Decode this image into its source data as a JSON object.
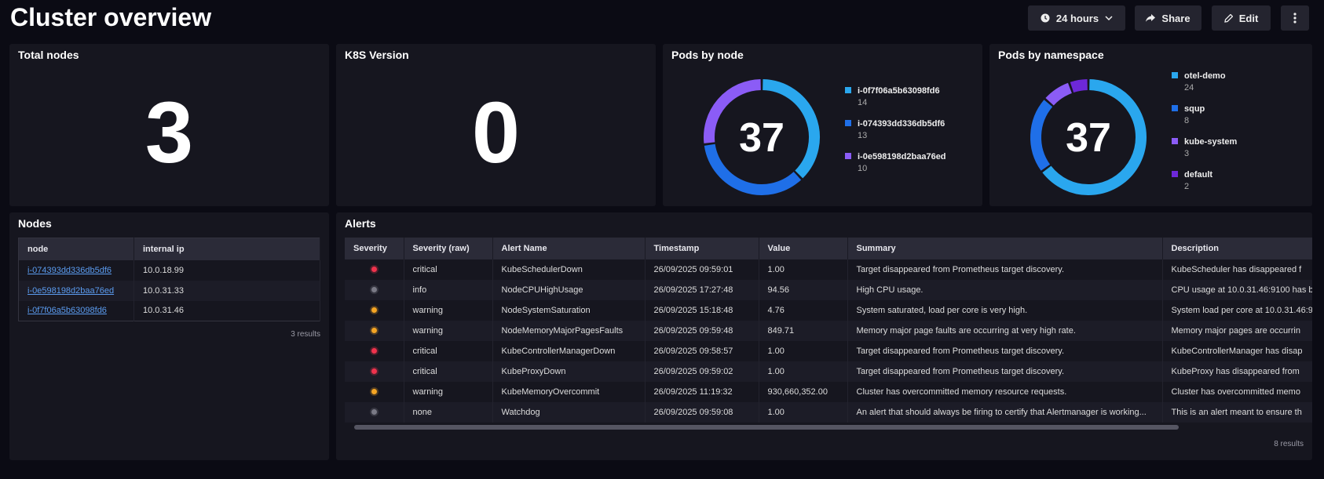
{
  "header": {
    "title": "Cluster overview",
    "buttons": {
      "time": "24 hours",
      "share": "Share",
      "edit": "Edit"
    }
  },
  "panels": {
    "total_nodes": {
      "title": "Total nodes",
      "value": 3
    },
    "k8s_version": {
      "title": "K8S Version",
      "value": 0
    },
    "pods_by_node": {
      "title": "Pods by node",
      "total": 37,
      "items": [
        {
          "name": "i-0f7f06a5b63098fd6",
          "value": 14,
          "color": "#2aa7ee"
        },
        {
          "name": "i-074393dd336db5df6",
          "value": 13,
          "color": "#1f6fe8"
        },
        {
          "name": "i-0e598198d2baa76ed",
          "value": 10,
          "color": "#8b5cf6"
        }
      ]
    },
    "pods_by_namespace": {
      "title": "Pods by namespace",
      "total": 37,
      "items": [
        {
          "name": "otel-demo",
          "value": 24,
          "color": "#2aa7ee"
        },
        {
          "name": "squp",
          "value": 8,
          "color": "#1f6fe8"
        },
        {
          "name": "kube-system",
          "value": 3,
          "color": "#8b5cf6"
        },
        {
          "name": "default",
          "value": 2,
          "color": "#6d28d9"
        }
      ]
    },
    "nodes": {
      "title": "Nodes",
      "columns": [
        "node",
        "internal ip"
      ],
      "rows": [
        [
          "i-074393dd336db5df6",
          "10.0.18.99"
        ],
        [
          "i-0e598198d2baa76ed",
          "10.0.31.33"
        ],
        [
          "i-0f7f06a5b63098fd6",
          "10.0.31.46"
        ]
      ],
      "footer": "3 results"
    },
    "alerts": {
      "title": "Alerts",
      "columns": [
        "Severity",
        "Severity (raw)",
        "Alert Name",
        "Timestamp",
        "Value",
        "Summary",
        "Description"
      ],
      "rows": [
        {
          "color": "#f0334d",
          "cells": [
            "critical",
            "KubeSchedulerDown",
            "26/09/2025 09:59:01",
            "1.00",
            "Target disappeared from Prometheus target discovery.",
            "KubeScheduler has disappeared f"
          ]
        },
        {
          "color": "#7a7a86",
          "cells": [
            "info",
            "NodeCPUHighUsage",
            "26/09/2025 17:27:48",
            "94.56",
            "High CPU usage.",
            "CPU usage at 10.0.31.46:9100 has b"
          ]
        },
        {
          "color": "#f5a524",
          "cells": [
            "warning",
            "NodeSystemSaturation",
            "26/09/2025 15:18:48",
            "4.76",
            "System saturated, load per core is very high.",
            "System load per core at 10.0.31.46:9"
          ]
        },
        {
          "color": "#f5a524",
          "cells": [
            "warning",
            "NodeMemoryMajorPagesFaults",
            "26/09/2025 09:59:48",
            "849.71",
            "Memory major page faults are occurring at very high rate.",
            "Memory major pages are occurrin"
          ]
        },
        {
          "color": "#f0334d",
          "cells": [
            "critical",
            "KubeControllerManagerDown",
            "26/09/2025 09:58:57",
            "1.00",
            "Target disappeared from Prometheus target discovery.",
            "KubeControllerManager has disap"
          ]
        },
        {
          "color": "#f0334d",
          "cells": [
            "critical",
            "KubeProxyDown",
            "26/09/2025 09:59:02",
            "1.00",
            "Target disappeared from Prometheus target discovery.",
            "KubeProxy has disappeared from"
          ]
        },
        {
          "color": "#f5a524",
          "cells": [
            "warning",
            "KubeMemoryOvercommit",
            "26/09/2025 11:19:32",
            "930,660,352.00",
            "Cluster has overcommitted memory resource requests.",
            "Cluster has overcommitted memo"
          ]
        },
        {
          "color": "#7a7a86",
          "cells": [
            "none",
            "Watchdog",
            "26/09/2025 09:59:08",
            "1.00",
            "An alert that should always be firing to certify that Alertmanager is working...",
            "This is an alert meant to ensure th"
          ]
        }
      ],
      "footer": "8 results"
    }
  }
}
